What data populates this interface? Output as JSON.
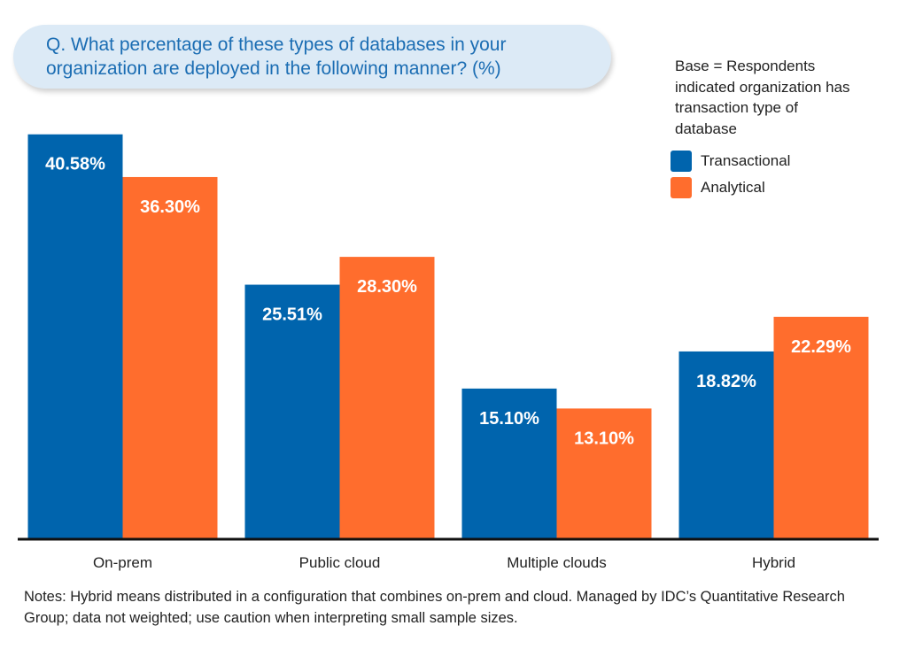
{
  "chart_data": {
    "type": "bar",
    "title": "Q. What percentage of these types of databases in your organization are deployed in the following manner? (%)",
    "subtitle": "Base = Respondents indicated organization has transaction type of database",
    "categories": [
      "On-prem",
      "Public cloud",
      "Multiple clouds",
      "Hybrid"
    ],
    "series": [
      {
        "name": "Transactional",
        "color": "#0064ad",
        "values": [
          40.58,
          25.51,
          15.1,
          18.82
        ],
        "value_labels": [
          "40.58%",
          "25.51%",
          "15.10%",
          "18.82%"
        ]
      },
      {
        "name": "Analytical",
        "color": "#ff6d2d",
        "values": [
          36.3,
          28.3,
          13.1,
          22.29
        ],
        "value_labels": [
          "36.30%",
          "28.30%",
          "13.10%",
          "22.29%"
        ]
      }
    ],
    "ylim": [
      0,
      41
    ],
    "notes": "Notes: Hybrid means distributed in a configuration that combines on-prem and cloud. Managed by IDC’s Quantitative Research Group; data not weighted; use caution when interpreting small sample sizes."
  }
}
